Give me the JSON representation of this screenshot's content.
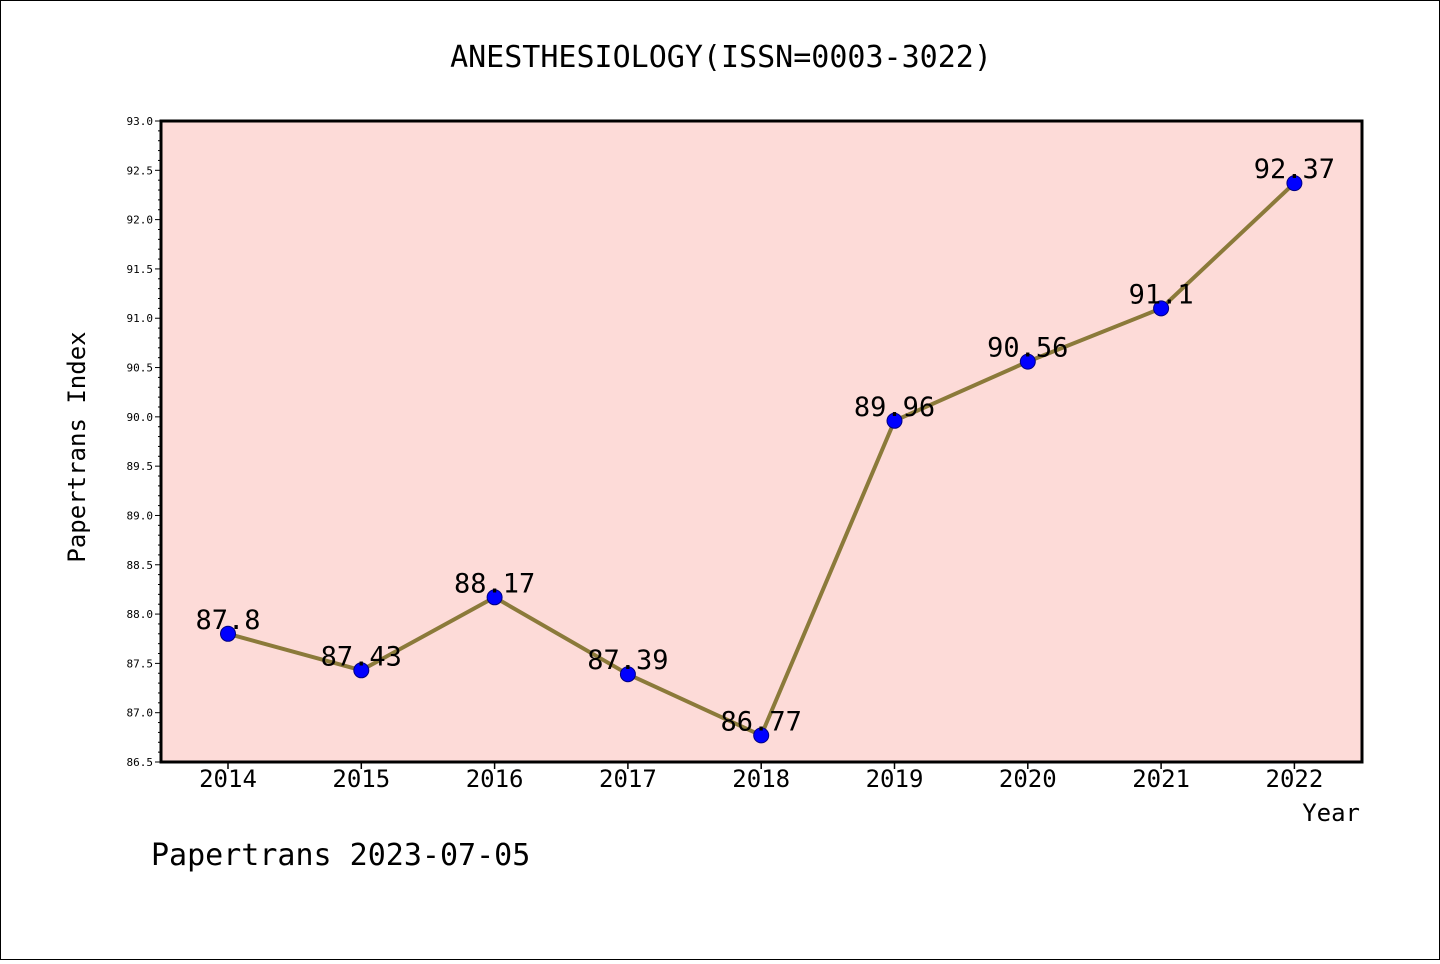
{
  "chart_data": {
    "type": "line",
    "title": "ANESTHESIOLOGY(ISSN=0003-3022)",
    "xlabel": "Year",
    "ylabel": "Papertrans Index",
    "footer": "Papertrans 2023-07-05",
    "categories": [
      "2014",
      "2015",
      "2016",
      "2017",
      "2018",
      "2019",
      "2020",
      "2021",
      "2022"
    ],
    "values": [
      87.8,
      87.43,
      88.17,
      87.39,
      86.77,
      89.96,
      90.56,
      91.1,
      92.37
    ],
    "data_labels": [
      "87.8",
      "87.43",
      "88.17",
      "87.39",
      "86.77",
      "89.96",
      "90.56",
      "91.1",
      "92.37"
    ],
    "ylim": [
      86.5,
      93.0
    ],
    "yticks": [
      "86.5",
      "87.0",
      "87.5",
      "88.0",
      "88.5",
      "89.0",
      "89.5",
      "90.0",
      "90.5",
      "91.0",
      "91.5",
      "92.0",
      "92.5",
      "93.0"
    ],
    "grid": false,
    "legend": "none",
    "colors": {
      "plot_background": "#fddbd8",
      "line": "#8b7a3a",
      "marker": "#0000ff",
      "marker_edge": "#000080"
    }
  }
}
